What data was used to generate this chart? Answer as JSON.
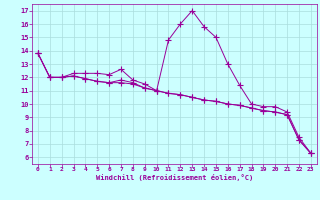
{
  "x": [
    0,
    1,
    2,
    3,
    4,
    5,
    6,
    7,
    8,
    9,
    10,
    11,
    12,
    13,
    14,
    15,
    16,
    17,
    18,
    19,
    20,
    21,
    22,
    23
  ],
  "line1": [
    13.8,
    12.0,
    12.0,
    12.3,
    12.3,
    12.3,
    12.2,
    12.6,
    11.8,
    11.5,
    11.0,
    14.8,
    16.0,
    17.0,
    15.8,
    15.0,
    13.0,
    11.4,
    10.0,
    9.8,
    9.8,
    9.4,
    7.5,
    6.3
  ],
  "line2": [
    13.8,
    12.0,
    12.0,
    12.1,
    11.9,
    11.7,
    11.6,
    11.6,
    11.5,
    11.2,
    11.0,
    10.8,
    10.7,
    10.5,
    10.3,
    10.2,
    10.0,
    9.9,
    9.7,
    9.5,
    9.4,
    9.2,
    7.3,
    6.3
  ],
  "line3": [
    13.8,
    12.0,
    12.0,
    12.1,
    11.9,
    11.7,
    11.6,
    11.8,
    11.6,
    11.2,
    11.0,
    10.8,
    10.7,
    10.5,
    10.3,
    10.2,
    10.0,
    9.9,
    9.7,
    9.5,
    9.4,
    9.2,
    7.3,
    6.3
  ],
  "line_color": "#990099",
  "bg_color": "#ccffff",
  "grid_color": "#aadddd",
  "xlabel": "Windchill (Refroidissement éolien,°C)",
  "ylim": [
    5.5,
    17.5
  ],
  "xlim": [
    -0.5,
    23.5
  ],
  "yticks": [
    6,
    7,
    8,
    9,
    10,
    11,
    12,
    13,
    14,
    15,
    16,
    17
  ],
  "xticks": [
    0,
    1,
    2,
    3,
    4,
    5,
    6,
    7,
    8,
    9,
    10,
    11,
    12,
    13,
    14,
    15,
    16,
    17,
    18,
    19,
    20,
    21,
    22,
    23
  ]
}
